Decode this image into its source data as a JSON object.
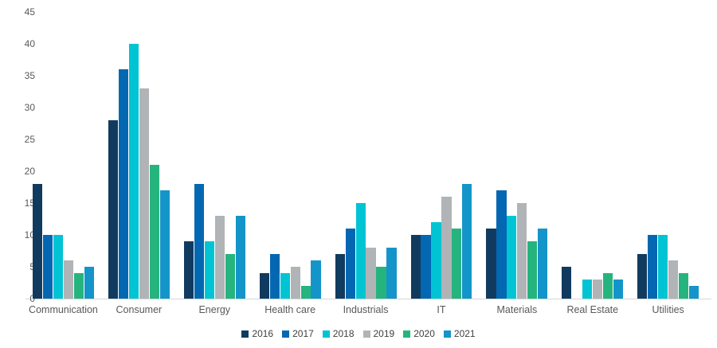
{
  "chart_data": {
    "type": "bar",
    "title": "",
    "xlabel": "",
    "ylabel": "",
    "categories": [
      "Communication",
      "Consumer",
      "Energy",
      "Health care",
      "Industrials",
      "IT",
      "Materials",
      "Real Estate",
      "Utilities"
    ],
    "series": [
      {
        "name": "2016",
        "color": "#113b5e",
        "values": [
          18,
          28,
          9,
          4,
          7,
          10,
          11,
          5,
          7
        ]
      },
      {
        "name": "2017",
        "color": "#0467b2",
        "values": [
          10,
          36,
          18,
          7,
          11,
          10,
          17,
          0,
          10
        ]
      },
      {
        "name": "2018",
        "color": "#00c4d4",
        "values": [
          10,
          40,
          9,
          4,
          15,
          12,
          13,
          3,
          10
        ]
      },
      {
        "name": "2019",
        "color": "#b1b4b6",
        "values": [
          6,
          33,
          13,
          5,
          8,
          16,
          15,
          3,
          6
        ]
      },
      {
        "name": "2020",
        "color": "#26b47e",
        "values": [
          4,
          21,
          7,
          2,
          5,
          11,
          9,
          4,
          4
        ]
      },
      {
        "name": "2021",
        "color": "#1495c9",
        "values": [
          5,
          17,
          13,
          6,
          8,
          18,
          11,
          3,
          2
        ]
      }
    ],
    "ylim": [
      0,
      45
    ],
    "yticks": [
      0,
      5,
      10,
      15,
      20,
      25,
      30,
      35,
      40,
      45
    ],
    "grid": false,
    "legend_position": "bottom",
    "axis_label_color": "#595959",
    "axis_line_color": "#d6d6d6",
    "background_color": "#ffffff"
  }
}
